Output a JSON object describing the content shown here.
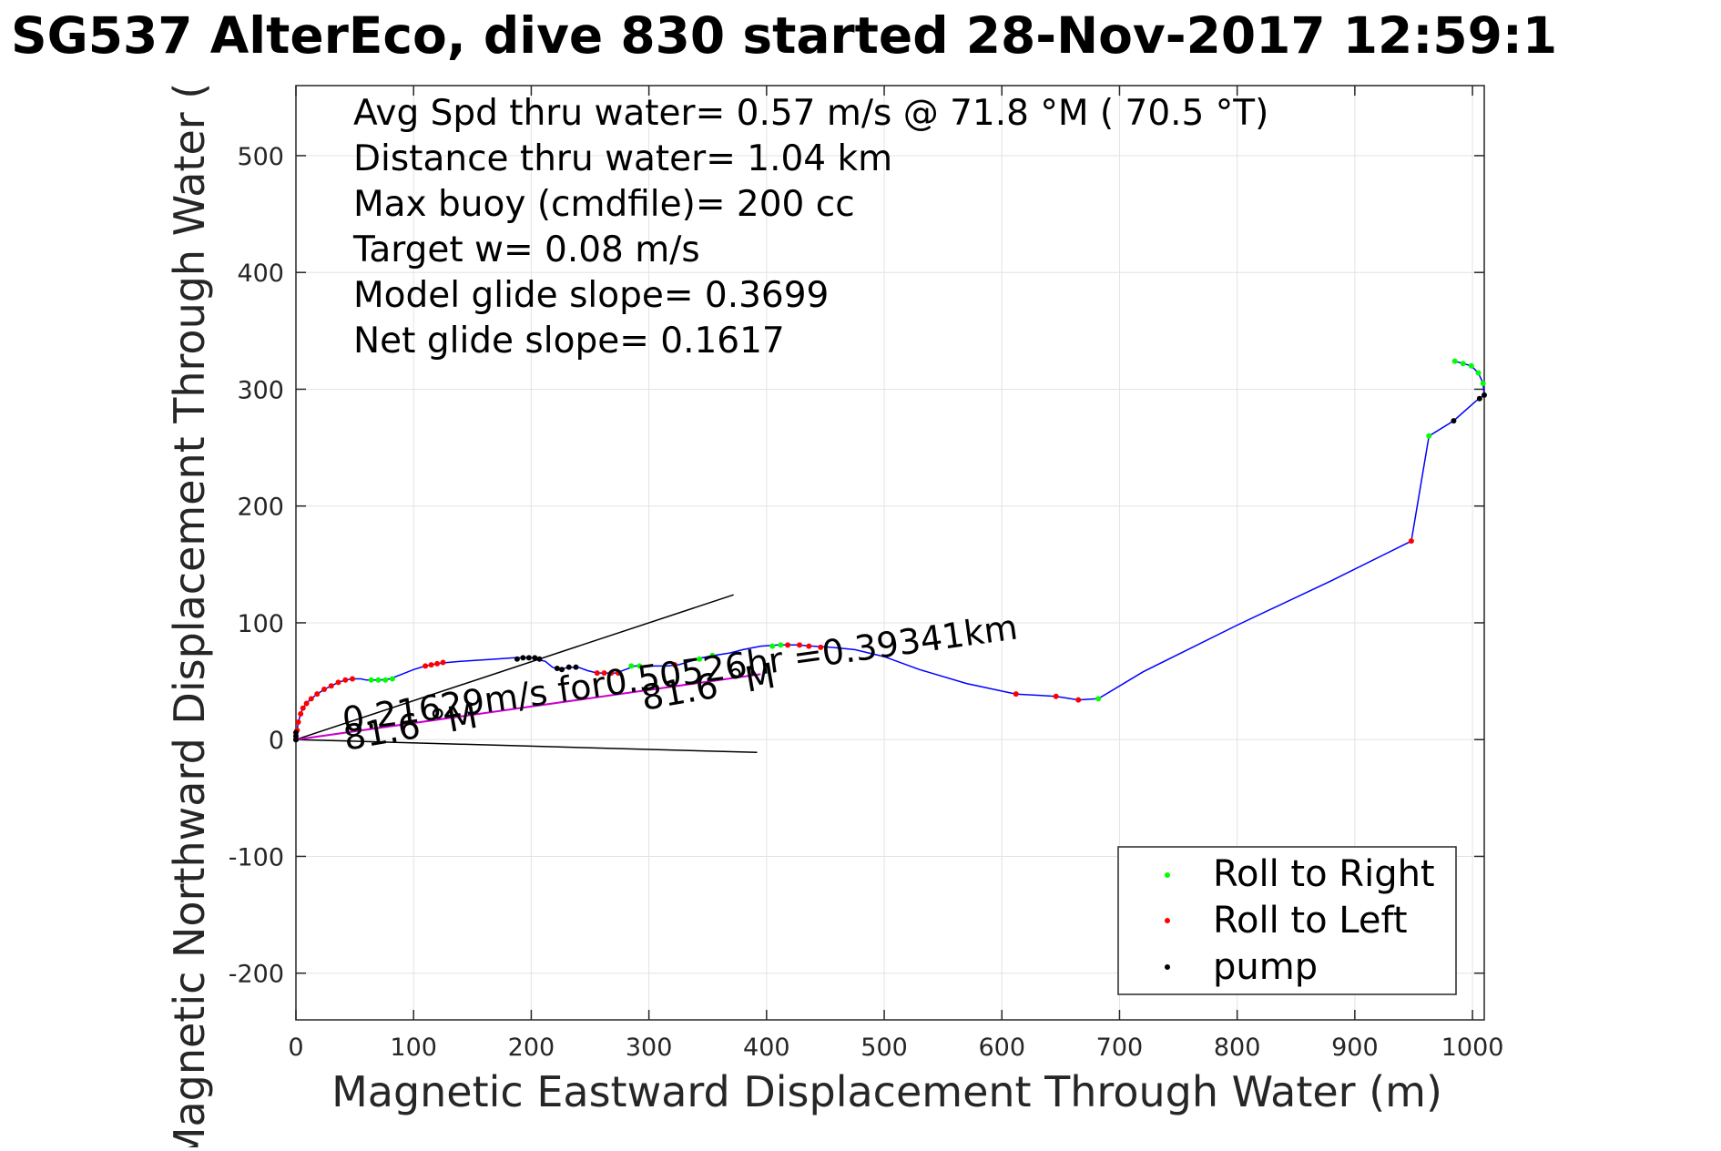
{
  "chart_data": {
    "type": "scatter",
    "title": "SG537 AlterEco, dive 830 started 28-Nov-2017 12:59:1",
    "xlabel": "Magnetic Eastward Displacement Through Water (m)",
    "ylabel": "Magnetic Northward Displacement Through Water (",
    "xlim": [
      0,
      1010
    ],
    "ylim": [
      -240,
      560
    ],
    "xticks": [
      0,
      100,
      200,
      300,
      400,
      500,
      600,
      700,
      800,
      900,
      1000
    ],
    "yticks": [
      -200,
      -100,
      0,
      100,
      200,
      300,
      400,
      500
    ],
    "grid": true,
    "legend_position": "bottom-right",
    "stats_lines": [
      "Avg Spd thru water=  0.57 m/s @  71.8 °M ( 70.5 °T)",
      "Distance thru water=  1.04 km",
      "Max buoy (cmdfile)= 200 cc",
      "Target w= 0.08 m/s",
      "Model glide slope= 0.3699",
      "Net glide slope= 0.1617"
    ],
    "annotations": {
      "current_text": "0.21629m/s for0.50526hr =0.39341km",
      "heading_label_1": "81.6 °M",
      "heading_label_2": "81.6 °M"
    },
    "track_color": "#0000ff",
    "current_line_color": "#cc00cc",
    "track": [
      [
        0,
        0
      ],
      [
        1,
        8
      ],
      [
        2,
        15
      ],
      [
        4,
        22
      ],
      [
        6,
        27
      ],
      [
        9,
        31
      ],
      [
        13,
        35
      ],
      [
        18,
        39
      ],
      [
        24,
        43
      ],
      [
        30,
        46
      ],
      [
        36,
        49
      ],
      [
        42,
        51
      ],
      [
        48,
        52
      ],
      [
        55,
        52
      ],
      [
        60,
        51
      ],
      [
        66,
        51
      ],
      [
        72,
        51
      ],
      [
        80,
        52
      ],
      [
        90,
        56
      ],
      [
        100,
        60
      ],
      [
        110,
        63
      ],
      [
        120,
        65
      ],
      [
        128,
        66
      ],
      [
        140,
        67
      ],
      [
        155,
        68
      ],
      [
        170,
        69
      ],
      [
        185,
        70
      ],
      [
        200,
        70
      ],
      [
        212,
        67
      ],
      [
        218,
        62
      ],
      [
        224,
        60
      ],
      [
        232,
        62
      ],
      [
        240,
        62
      ],
      [
        248,
        59
      ],
      [
        256,
        57
      ],
      [
        264,
        57
      ],
      [
        272,
        57
      ],
      [
        280,
        60
      ],
      [
        288,
        63
      ],
      [
        296,
        63
      ],
      [
        305,
        63
      ],
      [
        315,
        63
      ],
      [
        325,
        64
      ],
      [
        335,
        67
      ],
      [
        345,
        70
      ],
      [
        355,
        72
      ],
      [
        368,
        74
      ],
      [
        380,
        77
      ],
      [
        395,
        80
      ],
      [
        410,
        81
      ],
      [
        425,
        81
      ],
      [
        440,
        80
      ],
      [
        455,
        79
      ],
      [
        475,
        77
      ],
      [
        500,
        71
      ],
      [
        530,
        60
      ],
      [
        570,
        48
      ],
      [
        612,
        39
      ],
      [
        646,
        37
      ],
      [
        665,
        34
      ],
      [
        682,
        35
      ],
      [
        720,
        58
      ],
      [
        800,
        98
      ],
      [
        880,
        136
      ],
      [
        948,
        170
      ],
      [
        963,
        260
      ],
      [
        984,
        273
      ],
      [
        1003,
        290
      ],
      [
        1010,
        295
      ],
      [
        1009,
        305
      ],
      [
        1005,
        314
      ],
      [
        999,
        320
      ],
      [
        992,
        322
      ],
      [
        985,
        324
      ]
    ],
    "series": [
      {
        "name": "Roll to Right",
        "color": "#00ff00",
        "points": [
          [
            64,
            51
          ],
          [
            70,
            51
          ],
          [
            76,
            51
          ],
          [
            82,
            52
          ],
          [
            285,
            63
          ],
          [
            292,
            63
          ],
          [
            343,
            69
          ],
          [
            354,
            72
          ],
          [
            405,
            80
          ],
          [
            412,
            81
          ],
          [
            682,
            35
          ],
          [
            963,
            260
          ],
          [
            985,
            324
          ],
          [
            992,
            322
          ],
          [
            999,
            320
          ],
          [
            1005,
            314
          ],
          [
            1009,
            305
          ]
        ]
      },
      {
        "name": "Roll to Left",
        "color": "#ff0000",
        "points": [
          [
            0,
            0
          ],
          [
            1,
            8
          ],
          [
            2,
            15
          ],
          [
            4,
            22
          ],
          [
            6,
            27
          ],
          [
            9,
            31
          ],
          [
            13,
            35
          ],
          [
            18,
            39
          ],
          [
            24,
            43
          ],
          [
            30,
            46
          ],
          [
            36,
            49
          ],
          [
            42,
            51
          ],
          [
            48,
            52
          ],
          [
            110,
            63
          ],
          [
            115,
            64
          ],
          [
            120,
            65
          ],
          [
            125,
            66
          ],
          [
            256,
            57
          ],
          [
            262,
            57
          ],
          [
            268,
            57
          ],
          [
            274,
            57
          ],
          [
            322,
            64
          ],
          [
            418,
            81
          ],
          [
            428,
            81
          ],
          [
            436,
            80
          ],
          [
            446,
            79
          ],
          [
            612,
            39
          ],
          [
            646,
            37
          ],
          [
            665,
            34
          ],
          [
            948,
            170
          ]
        ]
      },
      {
        "name": "pump",
        "color": "#000000",
        "points": [
          [
            0,
            0
          ],
          [
            0,
            3
          ],
          [
            0,
            6
          ],
          [
            188,
            69
          ],
          [
            193,
            70
          ],
          [
            198,
            70
          ],
          [
            203,
            70
          ],
          [
            207,
            69
          ],
          [
            222,
            61
          ],
          [
            226,
            60
          ],
          [
            232,
            62
          ],
          [
            238,
            62
          ],
          [
            984,
            273
          ],
          [
            1006,
            292
          ],
          [
            1010,
            295
          ]
        ]
      }
    ],
    "reference_lines": [
      {
        "from": [
          0,
          0
        ],
        "to": [
          372,
          124
        ]
      },
      {
        "from": [
          0,
          0
        ],
        "to": [
          392,
          -11
        ]
      },
      {
        "from": [
          0,
          0
        ],
        "to": [
          395,
          56
        ]
      }
    ]
  }
}
